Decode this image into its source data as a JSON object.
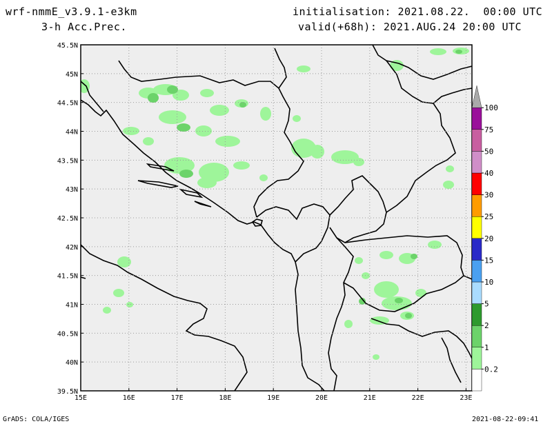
{
  "header": {
    "model": "wrf-nmmE_v3.9.1-e3km",
    "field": "3-h Acc.Prec.",
    "init": "initialisation: 2021.08.22.  00:00 UTC",
    "valid": "valid(+68h): 2021.AUG.24 20:00 UTC"
  },
  "footer": {
    "left": "GrADS: COLA/IGES",
    "right": "2021-08-22-09:41"
  },
  "map": {
    "lon_labels": [
      "15E",
      "16E",
      "17E",
      "18E",
      "19E",
      "20E",
      "21E",
      "22E",
      "23E"
    ],
    "lat_labels": [
      "45.5N",
      "45N",
      "44.5N",
      "44N",
      "43.5N",
      "43N",
      "42.5N",
      "42N",
      "41.5N",
      "41N",
      "40.5N",
      "40N",
      "39.5N"
    ],
    "background": "#eeeeee",
    "grid": true
  },
  "colorbar": {
    "labels": [
      "0.2",
      "1",
      "2",
      "5",
      "10",
      "15",
      "20",
      "25",
      "30",
      "40",
      "50",
      "75",
      "100"
    ],
    "colors": [
      "#ffffff",
      "#9ef59a",
      "#6cd36a",
      "#2e9a2e",
      "#aadcff",
      "#4aa0f0",
      "#2a2ac8",
      "#ffff00",
      "#ff9c00",
      "#ff0000",
      "#d08ec8",
      "#c85ea0",
      "#9a109a",
      "#aaaaaa"
    ]
  }
}
